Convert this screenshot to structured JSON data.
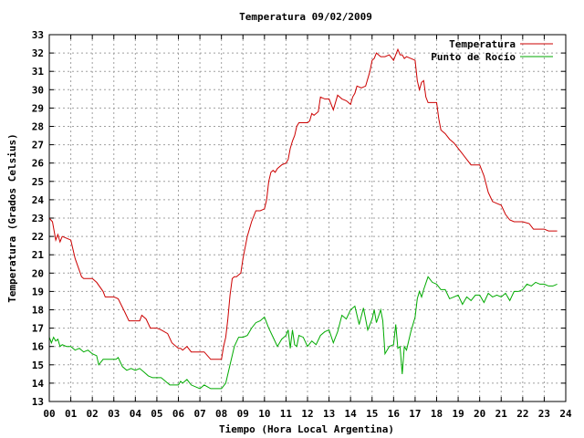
{
  "chart_data": {
    "type": "line",
    "title": "Temperatura 09/02/2009",
    "xlabel": "Tiempo (Hora Local Argentina)",
    "ylabel": "Temperatura (Grados Celsius)",
    "xlim": [
      0,
      24
    ],
    "ylim": [
      13,
      33
    ],
    "xticks": [
      0,
      1,
      2,
      3,
      4,
      5,
      6,
      7,
      8,
      9,
      10,
      11,
      12,
      13,
      14,
      15,
      16,
      17,
      18,
      19,
      20,
      21,
      22,
      23,
      24
    ],
    "xtick_labels": [
      "00",
      "01",
      "02",
      "03",
      "04",
      "05",
      "06",
      "07",
      "08",
      "09",
      "10",
      "11",
      "12",
      "13",
      "14",
      "15",
      "16",
      "17",
      "18",
      "19",
      "20",
      "21",
      "22",
      "23",
      "24"
    ],
    "yticks": [
      13,
      14,
      15,
      16,
      17,
      18,
      19,
      20,
      21,
      22,
      23,
      24,
      25,
      26,
      27,
      28,
      29,
      30,
      31,
      32,
      33
    ],
    "grid": true,
    "legend_position": "top-right",
    "series": [
      {
        "name": "Temperatura",
        "color": "#cc0000",
        "x": [
          0,
          0.15,
          0.3,
          0.4,
          0.5,
          0.6,
          0.8,
          1.0,
          1.2,
          1.5,
          1.6,
          2.0,
          2.2,
          2.5,
          2.6,
          3.0,
          3.2,
          3.5,
          3.7,
          4.0,
          4.2,
          4.3,
          4.5,
          4.7,
          5.0,
          5.2,
          5.5,
          5.7,
          6.0,
          6.1,
          6.2,
          6.4,
          6.6,
          7.0,
          7.2,
          7.5,
          7.8,
          8.0,
          8.1,
          8.2,
          8.3,
          8.4,
          8.5,
          8.6,
          8.7,
          8.8,
          8.9,
          9.0,
          9.2,
          9.4,
          9.6,
          9.8,
          10.0,
          10.1,
          10.2,
          10.3,
          10.4,
          10.5,
          10.6,
          10.8,
          11.0,
          11.1,
          11.2,
          11.3,
          11.4,
          11.5,
          11.6,
          12.0,
          12.1,
          12.2,
          12.3,
          12.5,
          12.6,
          12.8,
          13.0,
          13.2,
          13.4,
          13.6,
          13.8,
          14.0,
          14.1,
          14.2,
          14.3,
          14.5,
          14.7,
          14.9,
          15.0,
          15.1,
          15.2,
          15.4,
          15.6,
          15.8,
          16.0,
          16.1,
          16.2,
          16.3,
          16.4,
          16.5,
          16.6,
          16.8,
          17.0,
          17.1,
          17.2,
          17.3,
          17.4,
          17.5,
          17.6,
          17.8,
          18.0,
          18.1,
          18.2,
          18.4,
          18.6,
          18.8,
          19.0,
          19.2,
          19.4,
          19.6,
          19.8,
          20.0,
          20.2,
          20.4,
          20.6,
          20.8,
          21.0,
          21.2,
          21.4,
          21.6,
          21.8,
          22.0,
          22.3,
          22.5,
          22.8,
          23.0,
          23.2,
          23.4,
          23.6
        ],
        "y": [
          23.0,
          22.8,
          21.8,
          22.1,
          21.7,
          22.0,
          21.9,
          21.8,
          20.8,
          19.8,
          19.7,
          19.7,
          19.5,
          19.0,
          18.7,
          18.7,
          18.6,
          17.9,
          17.4,
          17.4,
          17.4,
          17.7,
          17.5,
          17.0,
          17.0,
          16.9,
          16.7,
          16.2,
          15.9,
          15.9,
          15.8,
          16.0,
          15.7,
          15.7,
          15.7,
          15.3,
          15.3,
          15.3,
          16.0,
          16.5,
          17.5,
          18.8,
          19.7,
          19.8,
          19.8,
          19.9,
          20.0,
          20.8,
          22.0,
          22.8,
          23.4,
          23.4,
          23.5,
          24.0,
          25.0,
          25.5,
          25.6,
          25.5,
          25.7,
          25.9,
          26.0,
          26.2,
          26.8,
          27.2,
          27.5,
          28.0,
          28.2,
          28.2,
          28.3,
          28.7,
          28.6,
          28.8,
          29.6,
          29.5,
          29.5,
          28.9,
          29.7,
          29.5,
          29.4,
          29.2,
          29.6,
          29.8,
          30.2,
          30.1,
          30.2,
          31.0,
          31.6,
          31.7,
          32.0,
          31.8,
          31.8,
          31.9,
          31.6,
          31.9,
          32.2,
          31.9,
          31.9,
          31.7,
          31.8,
          31.7,
          31.6,
          30.5,
          30.0,
          30.4,
          30.5,
          29.6,
          29.3,
          29.3,
          29.3,
          28.4,
          27.8,
          27.6,
          27.3,
          27.1,
          26.8,
          26.5,
          26.2,
          25.9,
          25.9,
          25.9,
          25.3,
          24.4,
          23.9,
          23.8,
          23.7,
          23.2,
          22.9,
          22.8,
          22.8,
          22.8,
          22.7,
          22.4,
          22.4,
          22.4,
          22.3,
          22.3,
          22.3
        ],
        "legend_label": "Temperatura"
      },
      {
        "name": "Punto de Rocío",
        "color": "#00aa00",
        "x": [
          0,
          0.1,
          0.2,
          0.3,
          0.4,
          0.5,
          0.6,
          0.8,
          1.0,
          1.2,
          1.4,
          1.6,
          1.8,
          2.0,
          2.2,
          2.3,
          2.5,
          2.7,
          3.0,
          3.1,
          3.2,
          3.4,
          3.6,
          3.8,
          4.0,
          4.2,
          4.4,
          4.6,
          4.8,
          5.0,
          5.2,
          5.4,
          5.6,
          5.8,
          6.0,
          6.1,
          6.2,
          6.4,
          6.6,
          6.8,
          7.0,
          7.2,
          7.5,
          7.8,
          8.0,
          8.2,
          8.4,
          8.6,
          8.8,
          9.0,
          9.2,
          9.4,
          9.6,
          9.8,
          10.0,
          10.2,
          10.4,
          10.6,
          10.8,
          11.0,
          11.1,
          11.2,
          11.3,
          11.4,
          11.5,
          11.6,
          11.8,
          12.0,
          12.2,
          12.4,
          12.6,
          12.8,
          13.0,
          13.2,
          13.4,
          13.6,
          13.8,
          14.0,
          14.2,
          14.4,
          14.6,
          14.8,
          15.0,
          15.1,
          15.2,
          15.4,
          15.5,
          15.6,
          15.8,
          16.0,
          16.1,
          16.2,
          16.3,
          16.4,
          16.5,
          16.6,
          16.8,
          17.0,
          17.1,
          17.2,
          17.3,
          17.4,
          17.6,
          17.8,
          18.0,
          18.2,
          18.4,
          18.6,
          18.8,
          19.0,
          19.2,
          19.4,
          19.6,
          19.8,
          20.0,
          20.2,
          20.4,
          20.6,
          20.8,
          21.0,
          21.2,
          21.4,
          21.6,
          21.8,
          22.0,
          22.2,
          22.4,
          22.6,
          22.8,
          23.0,
          23.2,
          23.4,
          23.6
        ],
        "y": [
          16.5,
          16.2,
          16.5,
          16.3,
          16.4,
          16.0,
          16.1,
          16.0,
          16.0,
          15.8,
          15.9,
          15.7,
          15.8,
          15.6,
          15.5,
          15.0,
          15.3,
          15.3,
          15.3,
          15.3,
          15.4,
          14.9,
          14.7,
          14.8,
          14.7,
          14.8,
          14.6,
          14.4,
          14.3,
          14.3,
          14.3,
          14.1,
          13.9,
          13.9,
          13.9,
          14.1,
          14.0,
          14.2,
          13.9,
          13.8,
          13.7,
          13.9,
          13.7,
          13.7,
          13.7,
          14.0,
          15.0,
          16.0,
          16.5,
          16.5,
          16.6,
          17.0,
          17.3,
          17.4,
          17.6,
          17.0,
          16.5,
          16.0,
          16.4,
          16.6,
          16.9,
          15.9,
          16.9,
          16.1,
          16.0,
          16.6,
          16.5,
          16.0,
          16.3,
          16.1,
          16.6,
          16.8,
          16.9,
          16.2,
          16.8,
          17.7,
          17.5,
          18.0,
          18.2,
          17.2,
          18.1,
          16.9,
          17.5,
          18.0,
          17.3,
          18.0,
          17.4,
          15.6,
          16.0,
          16.1,
          17.2,
          15.9,
          16.0,
          14.5,
          16.0,
          15.8,
          16.8,
          17.6,
          18.6,
          19.0,
          18.7,
          19.1,
          19.8,
          19.5,
          19.4,
          19.1,
          19.1,
          18.6,
          18.7,
          18.8,
          18.3,
          18.7,
          18.5,
          18.8,
          18.8,
          18.4,
          18.9,
          18.7,
          18.8,
          18.7,
          18.9,
          18.5,
          19.0,
          19.0,
          19.1,
          19.4,
          19.3,
          19.5,
          19.4,
          19.4,
          19.3,
          19.3,
          19.4
        ],
        "legend_label": "Punto de Rocío"
      }
    ]
  }
}
